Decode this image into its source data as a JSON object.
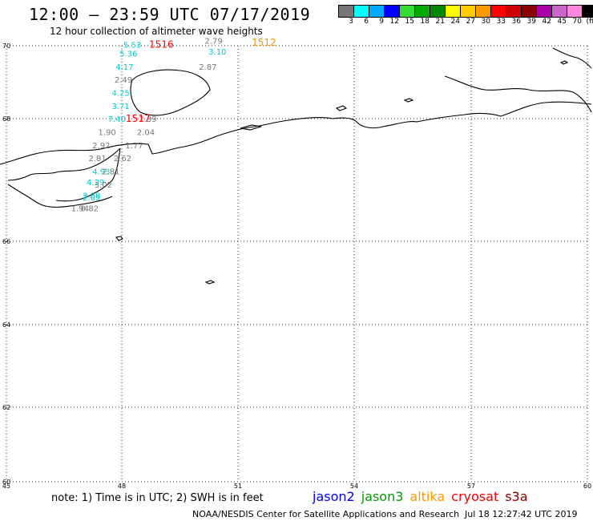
{
  "header": {
    "title": "12:00 – 23:59 UTC 07/17/2019",
    "subtitle": "12 hour collection of altimeter wave heights"
  },
  "colorbar": {
    "colors": [
      "#777777",
      "#00ffff",
      "#00aaff",
      "#0000ff",
      "#33dd33",
      "#00aa00",
      "#008800",
      "#ffff00",
      "#ffcc00",
      "#ff9900",
      "#ff0000",
      "#cc0000",
      "#880000",
      "#aa00aa",
      "#cc66cc",
      "#ff88dd",
      "#000000"
    ],
    "labels": [
      "3",
      "6",
      "9",
      "12",
      "15",
      "18",
      "21",
      "24",
      "27",
      "30",
      "33",
      "36",
      "39",
      "42",
      "45",
      "70",
      "(ft)"
    ]
  },
  "axes": {
    "lon_labels": [
      "45",
      "48",
      "51",
      "54",
      "57",
      "60"
    ],
    "lat_labels": [
      "70",
      "68",
      "66",
      "64",
      "62",
      "60"
    ]
  },
  "chart_data": {
    "type": "scatter",
    "title": "12:00 – 23:59 UTC 07/17/2019",
    "xlabel": "",
    "ylabel": "",
    "xlim": [
      45,
      60
    ],
    "ylim": [
      60,
      70
    ],
    "grid": true,
    "x_ticks": [
      45,
      48,
      51,
      54,
      57,
      60
    ],
    "y_ticks": [
      60,
      62,
      64,
      66,
      68,
      70
    ],
    "observations": [
      {
        "lon": 48.25,
        "lat": 69.95,
        "value": "5.53",
        "color": "#00cccc"
      },
      {
        "lon": 48.15,
        "lat": 69.75,
        "value": "5.36",
        "color": "#00cccc"
      },
      {
        "lon": 48.05,
        "lat": 69.45,
        "value": "4.17",
        "color": "#00cccc"
      },
      {
        "lon": 48.02,
        "lat": 69.15,
        "value": "2.49",
        "color": "#777777"
      },
      {
        "lon": 47.95,
        "lat": 68.85,
        "value": "4.25",
        "color": "#00cccc"
      },
      {
        "lon": 47.95,
        "lat": 68.55,
        "value": "3.71",
        "color": "#00cccc"
      },
      {
        "lon": 47.85,
        "lat": 68.25,
        "value": "7.40",
        "color": "#00cccc"
      },
      {
        "lon": 48.65,
        "lat": 68.25,
        "value": "2.39",
        "color": "#777777"
      },
      {
        "lon": 47.6,
        "lat": 67.95,
        "value": "1.90",
        "color": "#777777"
      },
      {
        "lon": 48.6,
        "lat": 67.95,
        "value": "2.04",
        "color": "#777777"
      },
      {
        "lon": 47.45,
        "lat": 67.65,
        "value": "2.92",
        "color": "#777777"
      },
      {
        "lon": 48.3,
        "lat": 67.65,
        "value": "1.77",
        "color": "#777777"
      },
      {
        "lon": 47.35,
        "lat": 67.35,
        "value": "2.81",
        "color": "#777777"
      },
      {
        "lon": 48.0,
        "lat": 67.35,
        "value": "2.62",
        "color": "#777777"
      },
      {
        "lon": 47.45,
        "lat": 67.05,
        "value": "4.93",
        "color": "#00cccc"
      },
      {
        "lon": 47.7,
        "lat": 67.05,
        "value": "2.81",
        "color": "#777777"
      },
      {
        "lon": 47.3,
        "lat": 66.8,
        "value": "4.29",
        "color": "#00cccc"
      },
      {
        "lon": 47.5,
        "lat": 66.75,
        "value": "3.02",
        "color": "#777777"
      },
      {
        "lon": 47.2,
        "lat": 66.5,
        "value": "2.88",
        "color": "#00cccc"
      },
      {
        "lon": 47.2,
        "lat": 66.45,
        "value": "2.05",
        "color": "#00cccc"
      },
      {
        "lon": 46.9,
        "lat": 66.2,
        "value": "1.94",
        "color": "#777777"
      },
      {
        "lon": 47.15,
        "lat": 66.2,
        "value": "0.82",
        "color": "#777777"
      },
      {
        "lon": 50.35,
        "lat": 70.05,
        "value": "2.79",
        "color": "#777777"
      },
      {
        "lon": 50.45,
        "lat": 69.8,
        "value": "3.10",
        "color": "#00cccc"
      },
      {
        "lon": 50.2,
        "lat": 69.45,
        "value": "2.87",
        "color": "#777777"
      }
    ],
    "pass_times": [
      {
        "lon": 49.0,
        "lat": 69.95,
        "label": "1516",
        "color": "#ff0000"
      },
      {
        "lon": 48.4,
        "lat": 68.25,
        "label": "1517",
        "color": "#ff0000"
      },
      {
        "lon": 51.65,
        "lat": 70.0,
        "label": "1512",
        "color": "#ee9900"
      }
    ]
  },
  "note": "note:  1) Time is in UTC;  2) SWH is in feet",
  "legend": [
    {
      "name": "jason2",
      "color": "#0000ee"
    },
    {
      "name": "jason3",
      "color": "#009900"
    },
    {
      "name": "altika",
      "color": "#ff9900"
    },
    {
      "name": "cryosat",
      "color": "#ee0000"
    },
    {
      "name": "s3a",
      "color": "#880000"
    }
  ],
  "footer": {
    "credit": "NOAA/NESDIS Center for Satellite Applications and Research",
    "timestamp": "Jul 18 12:27:42 UTC 2019"
  }
}
